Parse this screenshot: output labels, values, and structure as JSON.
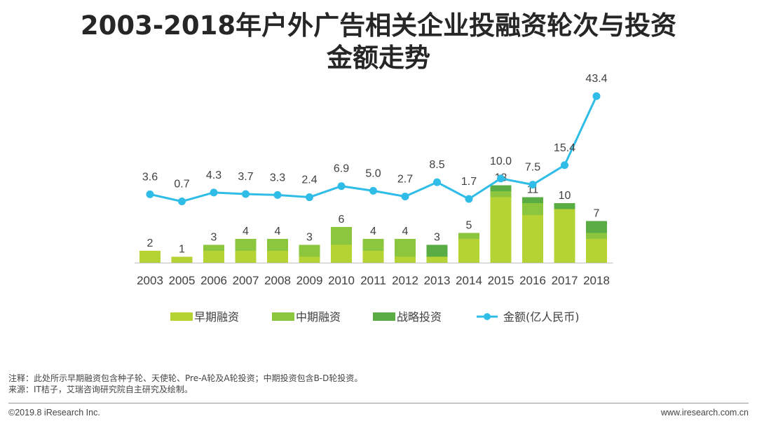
{
  "page": {
    "title_line1": "2003-2018年户外广告相关企业投融资轮次与投资",
    "title_line2": "金额走势",
    "note": "注释：此处所示早期融资包含种子轮、天使轮、Pre-A轮及A轮投资；中期投资包含B-D轮投资。",
    "source": "来源：IT桔子，艾瑞咨询研究院自主研究及绘制。",
    "copyright": "©2019.8 iResearch Inc.",
    "website": "www.iresearch.com.cn"
  },
  "colors": {
    "early": "#b5d334",
    "mid": "#8cc63f",
    "strategic": "#5aac44",
    "line": "#2fbde8",
    "axis": "#bfbfbf",
    "text": "#404040"
  },
  "chart_data": {
    "type": "bar+line",
    "categories": [
      "2003",
      "2005",
      "2006",
      "2007",
      "2008",
      "2009",
      "2010",
      "2011",
      "2012",
      "2013",
      "2014",
      "2015",
      "2016",
      "2017",
      "2018"
    ],
    "bar_stack": [
      {
        "name": "早期融资",
        "values": [
          2,
          1,
          2,
          2,
          2,
          1,
          3,
          2,
          1,
          1,
          4,
          11,
          8,
          9,
          4
        ]
      },
      {
        "name": "中期融资",
        "values": [
          0,
          0,
          1,
          2,
          2,
          2,
          3,
          2,
          3,
          0,
          1,
          1,
          2,
          0,
          1
        ]
      },
      {
        "name": "战略投资",
        "values": [
          0,
          0,
          0,
          0,
          0,
          0,
          0,
          0,
          0,
          2,
          0,
          1,
          1,
          1,
          2
        ]
      }
    ],
    "bar_totals": [
      2,
      1,
      3,
      4,
      4,
      3,
      6,
      4,
      4,
      3,
      5,
      13,
      11,
      10,
      7
    ],
    "line": {
      "name": "金额(亿人民币)",
      "values": [
        3.6,
        0.7,
        4.3,
        3.7,
        3.3,
        2.4,
        6.9,
        5.0,
        2.7,
        8.5,
        1.7,
        10.0,
        7.5,
        15.4,
        43.4
      ],
      "labels": [
        "3.6",
        "0.7",
        "4.3",
        "3.7",
        "3.3",
        "2.4",
        "6.9",
        "5.0",
        "2.7",
        "8.5",
        "1.7",
        "10.0",
        "7.5",
        "15.4",
        "43.4"
      ]
    },
    "legend": [
      "早期融资",
      "中期融资",
      "战略投资",
      "金额(亿人民币)"
    ],
    "legend_position": "bottom"
  }
}
